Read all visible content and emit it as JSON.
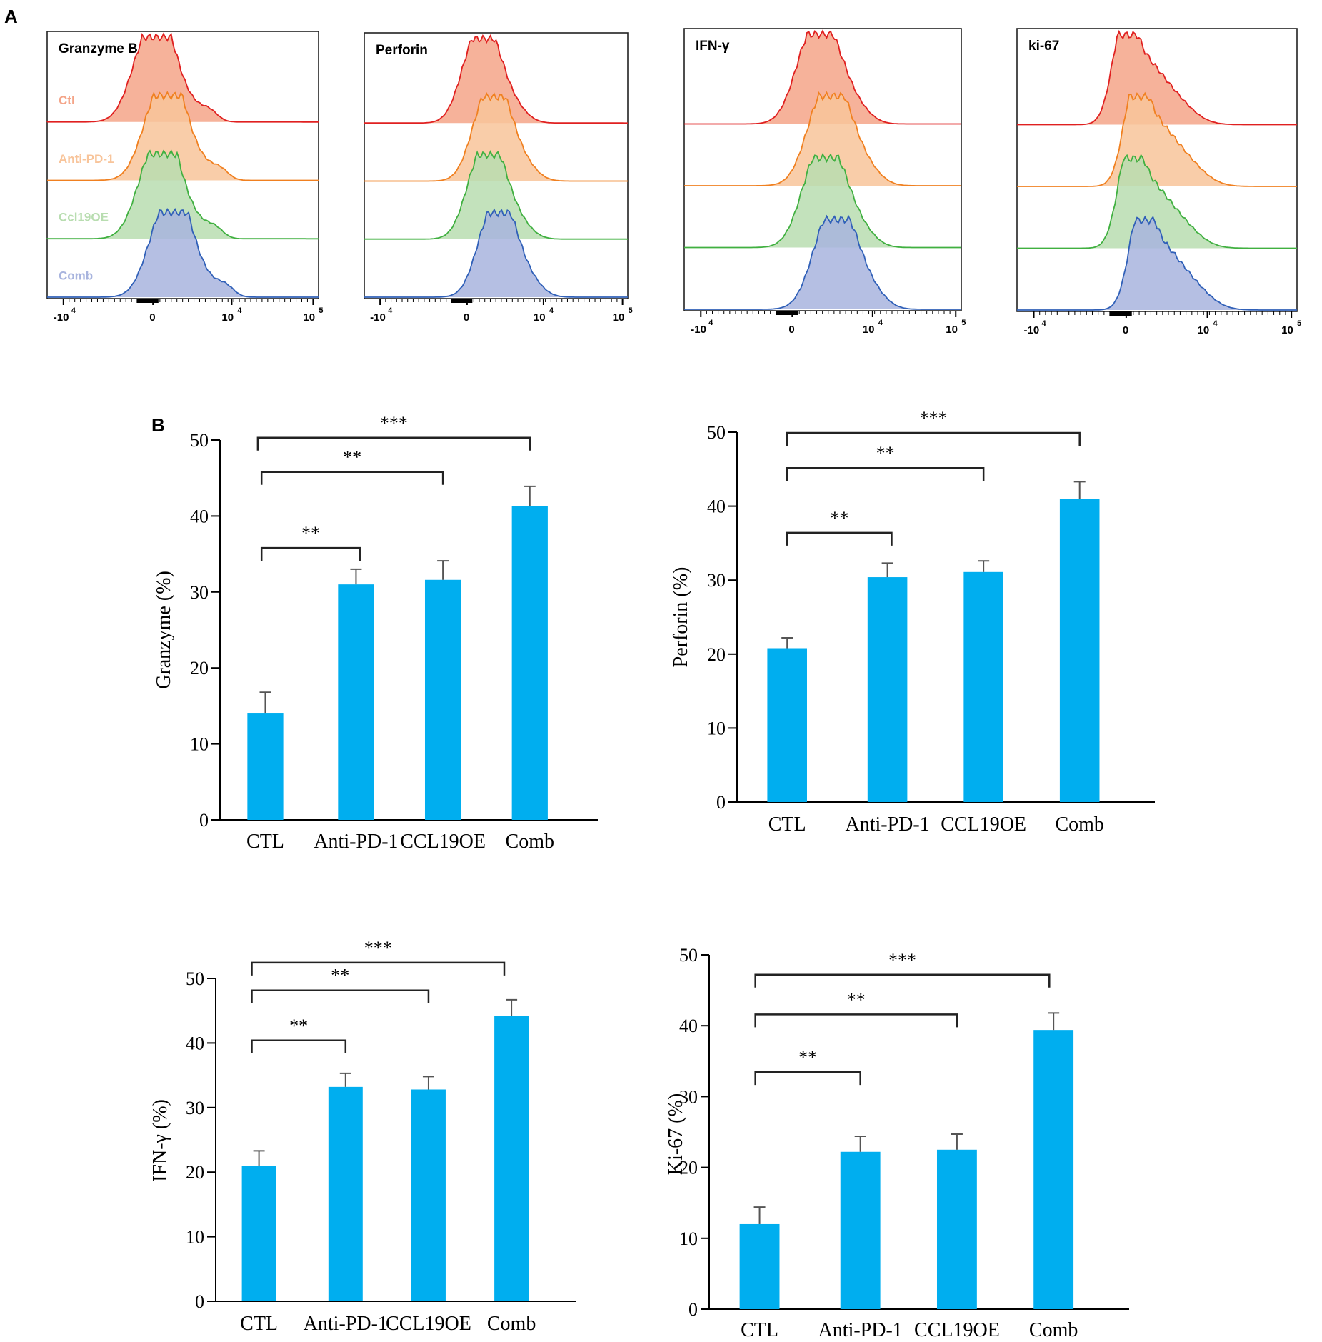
{
  "panel_labels": {
    "a": "A",
    "b": "B"
  },
  "colors": {
    "bar": "#00aeef",
    "ctl": "#e02020",
    "anti_pd1": "#f08020",
    "ccl19oe": "#40b040",
    "comb": "#3060b8",
    "ctl_fill": "#f4a488",
    "anti_pd1_fill": "#f8c49a",
    "ccl19oe_fill": "#b8ddb0",
    "comb_fill": "#a8b4de"
  },
  "histograms": {
    "legend": [
      "Ctl",
      "Anti-PD-1",
      "Ccl19OE",
      "Comb"
    ],
    "x_tick_labels": [
      "-10",
      "0",
      "10",
      "10"
    ],
    "x_tick_exponents": [
      "4",
      "",
      "4",
      "5"
    ],
    "panels": [
      {
        "title": "Granzyme B",
        "show_legend": true
      },
      {
        "title": "Perforin",
        "show_legend": false
      },
      {
        "title": "IFN-γ",
        "show_legend": false
      },
      {
        "title": "ki-67",
        "show_legend": false
      }
    ]
  },
  "chart_data": [
    {
      "type": "bar",
      "title": "",
      "ylabel": "Granzyme (%)",
      "categories": [
        "CTL",
        "Anti-PD-1",
        "CCL19OE",
        "Comb"
      ],
      "values": [
        14,
        31,
        31.6,
        41.3
      ],
      "errors": [
        2.8,
        2,
        2.5,
        2.6
      ],
      "ylim": [
        0,
        50
      ],
      "yticks": [
        "0",
        "10",
        "20",
        "30",
        "40",
        "50"
      ],
      "significance": [
        {
          "from": "CTL",
          "to": "Anti-PD-1",
          "label": "**"
        },
        {
          "from": "CTL",
          "to": "CCL19OE",
          "label": "**"
        },
        {
          "from": "CTL",
          "to": "Comb",
          "label": "***"
        }
      ]
    },
    {
      "type": "bar",
      "title": "",
      "ylabel": "Perforin (%)",
      "categories": [
        "CTL",
        "Anti-PD-1",
        "CCL19OE",
        "Comb"
      ],
      "values": [
        20.8,
        30.4,
        31.1,
        41
      ],
      "errors": [
        1.4,
        1.9,
        1.5,
        2.3
      ],
      "ylim": [
        0,
        50
      ],
      "yticks": [
        "0",
        "10",
        "20",
        "30",
        "40",
        "50"
      ],
      "significance": [
        {
          "from": "CTL",
          "to": "Anti-PD-1",
          "label": "**"
        },
        {
          "from": "CTL",
          "to": "CCL19OE",
          "label": "**"
        },
        {
          "from": "CTL",
          "to": "Comb",
          "label": "***"
        }
      ]
    },
    {
      "type": "bar",
      "title": "",
      "ylabel": "IFN-γ (%)",
      "categories": [
        "CTL",
        "Anti-PD-1",
        "CCL19OE",
        "Comb"
      ],
      "values": [
        21,
        33.2,
        32.8,
        44.2
      ],
      "errors": [
        2.3,
        2.1,
        2,
        2.5
      ],
      "ylim": [
        0,
        50
      ],
      "yticks": [
        "0",
        "10",
        "20",
        "30",
        "40",
        "50"
      ],
      "significance": [
        {
          "from": "CTL",
          "to": "Anti-PD-1",
          "label": "**"
        },
        {
          "from": "CTL",
          "to": "CCL19OE",
          "label": "**"
        },
        {
          "from": "CTL",
          "to": "Comb",
          "label": "***"
        }
      ]
    },
    {
      "type": "bar",
      "title": "",
      "ylabel": "Ki-67 (%)",
      "categories": [
        "CTL",
        "Anti-PD-1",
        "CCL19OE",
        "Comb"
      ],
      "values": [
        12,
        22.2,
        22.5,
        39.4
      ],
      "errors": [
        2.4,
        2.2,
        2.2,
        2.4
      ],
      "ylim": [
        0,
        50
      ],
      "yticks": [
        "0",
        "10",
        "20",
        "30",
        "40",
        "50"
      ],
      "significance": [
        {
          "from": "CTL",
          "to": "Anti-PD-1",
          "label": "**"
        },
        {
          "from": "CTL",
          "to": "CCL19OE",
          "label": "**"
        },
        {
          "from": "CTL",
          "to": "Comb",
          "label": "***"
        }
      ]
    }
  ]
}
